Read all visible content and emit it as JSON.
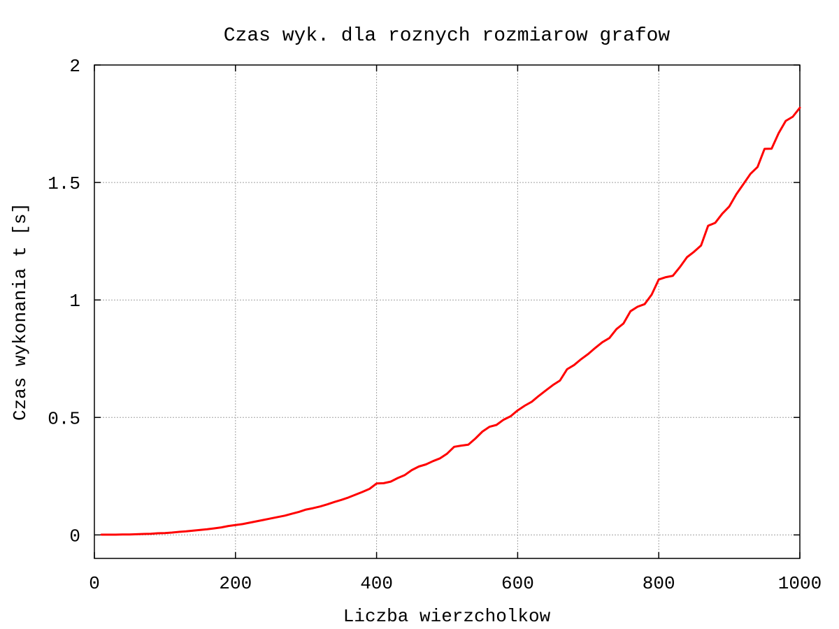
{
  "chart_data": {
    "type": "line",
    "title": "Czas wyk. dla roznych rozmiarow grafow",
    "xlabel": "Liczba wierzcholkow",
    "ylabel": "Czas wykonania t [s]",
    "xlim": [
      0,
      1000
    ],
    "ylim": [
      -0.1,
      2
    ],
    "xticks": [
      0,
      200,
      400,
      600,
      800,
      1000
    ],
    "yticks": [
      0,
      0.5,
      1,
      1.5,
      2
    ],
    "xtick_labels": [
      "0",
      "200",
      "400",
      "600",
      "800",
      "1000"
    ],
    "ytick_labels": [
      "0",
      "0.5",
      "1",
      "1.5",
      "2"
    ],
    "grid": true,
    "legend": "none",
    "series": [
      {
        "color": "#ff0000",
        "x": [
          10,
          20,
          30,
          40,
          50,
          60,
          70,
          80,
          90,
          100,
          110,
          120,
          130,
          140,
          150,
          160,
          170,
          180,
          190,
          200,
          210,
          220,
          230,
          240,
          250,
          260,
          270,
          280,
          290,
          300,
          310,
          320,
          330,
          340,
          350,
          360,
          370,
          380,
          390,
          400,
          410,
          420,
          430,
          440,
          450,
          460,
          470,
          480,
          490,
          500,
          510,
          520,
          530,
          540,
          550,
          560,
          570,
          580,
          590,
          600,
          610,
          620,
          630,
          640,
          650,
          660,
          670,
          680,
          690,
          700,
          710,
          720,
          730,
          740,
          750,
          760,
          770,
          780,
          790,
          800,
          810,
          820,
          830,
          840,
          850,
          860,
          870,
          880,
          890,
          900,
          910,
          920,
          930,
          940,
          950,
          960,
          970,
          980,
          990,
          1000
        ],
        "y": [
          0.001,
          0.001,
          0.001,
          0.002,
          0.002,
          0.003,
          0.004,
          0.005,
          0.007,
          0.008,
          0.01,
          0.013,
          0.015,
          0.018,
          0.021,
          0.024,
          0.028,
          0.032,
          0.038,
          0.042,
          0.046,
          0.052,
          0.058,
          0.064,
          0.07,
          0.076,
          0.082,
          0.09,
          0.098,
          0.108,
          0.114,
          0.121,
          0.13,
          0.14,
          0.149,
          0.159,
          0.171,
          0.183,
          0.196,
          0.219,
          0.22,
          0.227,
          0.242,
          0.255,
          0.276,
          0.291,
          0.3,
          0.314,
          0.326,
          0.346,
          0.375,
          0.38,
          0.384,
          0.41,
          0.44,
          0.46,
          0.468,
          0.49,
          0.505,
          0.53,
          0.55,
          0.567,
          0.592,
          0.615,
          0.638,
          0.657,
          0.705,
          0.723,
          0.748,
          0.77,
          0.796,
          0.82,
          0.838,
          0.876,
          0.9,
          0.952,
          0.971,
          0.982,
          1.023,
          1.087,
          1.097,
          1.103,
          1.14,
          1.182,
          1.205,
          1.232,
          1.316,
          1.328,
          1.367,
          1.398,
          1.45,
          1.493,
          1.537,
          1.566,
          1.643,
          1.644,
          1.71,
          1.762,
          1.78,
          1.818
        ]
      }
    ]
  }
}
